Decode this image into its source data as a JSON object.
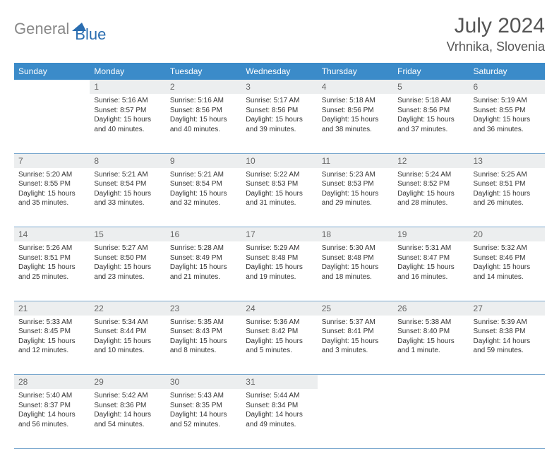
{
  "brand": {
    "part1": "General",
    "part2": "Blue",
    "color_gray": "#888888",
    "color_blue": "#2a6db0"
  },
  "title": "July 2024",
  "location": "Vrhnika, Slovenia",
  "theme": {
    "header_bg": "#3b8bc9",
    "header_fg": "#ffffff",
    "daynum_bg": "#eceeef",
    "daynum_fg": "#666666",
    "rule_color": "#7aa8ce",
    "body_fg": "#333333",
    "title_fg": "#555555",
    "title_fontsize": 30,
    "location_fontsize": 18,
    "cell_fontsize": 10,
    "header_fontsize": 12
  },
  "weekdays": [
    "Sunday",
    "Monday",
    "Tuesday",
    "Wednesday",
    "Thursday",
    "Friday",
    "Saturday"
  ],
  "weeks": [
    [
      null,
      {
        "n": "1",
        "sr": "Sunrise: 5:16 AM",
        "ss": "Sunset: 8:57 PM",
        "dl": "Daylight: 15 hours and 40 minutes."
      },
      {
        "n": "2",
        "sr": "Sunrise: 5:16 AM",
        "ss": "Sunset: 8:56 PM",
        "dl": "Daylight: 15 hours and 40 minutes."
      },
      {
        "n": "3",
        "sr": "Sunrise: 5:17 AM",
        "ss": "Sunset: 8:56 PM",
        "dl": "Daylight: 15 hours and 39 minutes."
      },
      {
        "n": "4",
        "sr": "Sunrise: 5:18 AM",
        "ss": "Sunset: 8:56 PM",
        "dl": "Daylight: 15 hours and 38 minutes."
      },
      {
        "n": "5",
        "sr": "Sunrise: 5:18 AM",
        "ss": "Sunset: 8:56 PM",
        "dl": "Daylight: 15 hours and 37 minutes."
      },
      {
        "n": "6",
        "sr": "Sunrise: 5:19 AM",
        "ss": "Sunset: 8:55 PM",
        "dl": "Daylight: 15 hours and 36 minutes."
      }
    ],
    [
      {
        "n": "7",
        "sr": "Sunrise: 5:20 AM",
        "ss": "Sunset: 8:55 PM",
        "dl": "Daylight: 15 hours and 35 minutes."
      },
      {
        "n": "8",
        "sr": "Sunrise: 5:21 AM",
        "ss": "Sunset: 8:54 PM",
        "dl": "Daylight: 15 hours and 33 minutes."
      },
      {
        "n": "9",
        "sr": "Sunrise: 5:21 AM",
        "ss": "Sunset: 8:54 PM",
        "dl": "Daylight: 15 hours and 32 minutes."
      },
      {
        "n": "10",
        "sr": "Sunrise: 5:22 AM",
        "ss": "Sunset: 8:53 PM",
        "dl": "Daylight: 15 hours and 31 minutes."
      },
      {
        "n": "11",
        "sr": "Sunrise: 5:23 AM",
        "ss": "Sunset: 8:53 PM",
        "dl": "Daylight: 15 hours and 29 minutes."
      },
      {
        "n": "12",
        "sr": "Sunrise: 5:24 AM",
        "ss": "Sunset: 8:52 PM",
        "dl": "Daylight: 15 hours and 28 minutes."
      },
      {
        "n": "13",
        "sr": "Sunrise: 5:25 AM",
        "ss": "Sunset: 8:51 PM",
        "dl": "Daylight: 15 hours and 26 minutes."
      }
    ],
    [
      {
        "n": "14",
        "sr": "Sunrise: 5:26 AM",
        "ss": "Sunset: 8:51 PM",
        "dl": "Daylight: 15 hours and 25 minutes."
      },
      {
        "n": "15",
        "sr": "Sunrise: 5:27 AM",
        "ss": "Sunset: 8:50 PM",
        "dl": "Daylight: 15 hours and 23 minutes."
      },
      {
        "n": "16",
        "sr": "Sunrise: 5:28 AM",
        "ss": "Sunset: 8:49 PM",
        "dl": "Daylight: 15 hours and 21 minutes."
      },
      {
        "n": "17",
        "sr": "Sunrise: 5:29 AM",
        "ss": "Sunset: 8:48 PM",
        "dl": "Daylight: 15 hours and 19 minutes."
      },
      {
        "n": "18",
        "sr": "Sunrise: 5:30 AM",
        "ss": "Sunset: 8:48 PM",
        "dl": "Daylight: 15 hours and 18 minutes."
      },
      {
        "n": "19",
        "sr": "Sunrise: 5:31 AM",
        "ss": "Sunset: 8:47 PM",
        "dl": "Daylight: 15 hours and 16 minutes."
      },
      {
        "n": "20",
        "sr": "Sunrise: 5:32 AM",
        "ss": "Sunset: 8:46 PM",
        "dl": "Daylight: 15 hours and 14 minutes."
      }
    ],
    [
      {
        "n": "21",
        "sr": "Sunrise: 5:33 AM",
        "ss": "Sunset: 8:45 PM",
        "dl": "Daylight: 15 hours and 12 minutes."
      },
      {
        "n": "22",
        "sr": "Sunrise: 5:34 AM",
        "ss": "Sunset: 8:44 PM",
        "dl": "Daylight: 15 hours and 10 minutes."
      },
      {
        "n": "23",
        "sr": "Sunrise: 5:35 AM",
        "ss": "Sunset: 8:43 PM",
        "dl": "Daylight: 15 hours and 8 minutes."
      },
      {
        "n": "24",
        "sr": "Sunrise: 5:36 AM",
        "ss": "Sunset: 8:42 PM",
        "dl": "Daylight: 15 hours and 5 minutes."
      },
      {
        "n": "25",
        "sr": "Sunrise: 5:37 AM",
        "ss": "Sunset: 8:41 PM",
        "dl": "Daylight: 15 hours and 3 minutes."
      },
      {
        "n": "26",
        "sr": "Sunrise: 5:38 AM",
        "ss": "Sunset: 8:40 PM",
        "dl": "Daylight: 15 hours and 1 minute."
      },
      {
        "n": "27",
        "sr": "Sunrise: 5:39 AM",
        "ss": "Sunset: 8:38 PM",
        "dl": "Daylight: 14 hours and 59 minutes."
      }
    ],
    [
      {
        "n": "28",
        "sr": "Sunrise: 5:40 AM",
        "ss": "Sunset: 8:37 PM",
        "dl": "Daylight: 14 hours and 56 minutes."
      },
      {
        "n": "29",
        "sr": "Sunrise: 5:42 AM",
        "ss": "Sunset: 8:36 PM",
        "dl": "Daylight: 14 hours and 54 minutes."
      },
      {
        "n": "30",
        "sr": "Sunrise: 5:43 AM",
        "ss": "Sunset: 8:35 PM",
        "dl": "Daylight: 14 hours and 52 minutes."
      },
      {
        "n": "31",
        "sr": "Sunrise: 5:44 AM",
        "ss": "Sunset: 8:34 PM",
        "dl": "Daylight: 14 hours and 49 minutes."
      },
      null,
      null,
      null
    ]
  ]
}
